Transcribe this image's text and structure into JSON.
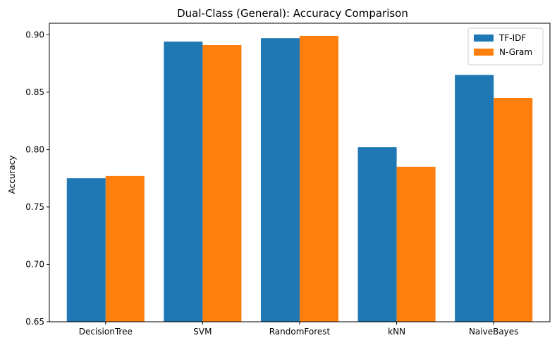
{
  "chart_data": {
    "type": "bar",
    "title": "Dual-Class (General): Accuracy Comparison",
    "xlabel": "",
    "ylabel": "Accuracy",
    "categories": [
      "DecisionTree",
      "SVM",
      "RandomForest",
      "kNN",
      "NaiveBayes"
    ],
    "series": [
      {
        "name": "TF-IDF",
        "color": "#1f77b4",
        "values": [
          0.775,
          0.894,
          0.897,
          0.802,
          0.865
        ]
      },
      {
        "name": "N-Gram",
        "color": "#ff7f0e",
        "values": [
          0.777,
          0.891,
          0.899,
          0.785,
          0.845
        ]
      }
    ],
    "ylim": [
      0.65,
      0.91
    ],
    "yticks": [
      "0.65",
      "0.70",
      "0.75",
      "0.80",
      "0.85",
      "0.90"
    ],
    "grid": false,
    "legend_position": "top-right"
  }
}
